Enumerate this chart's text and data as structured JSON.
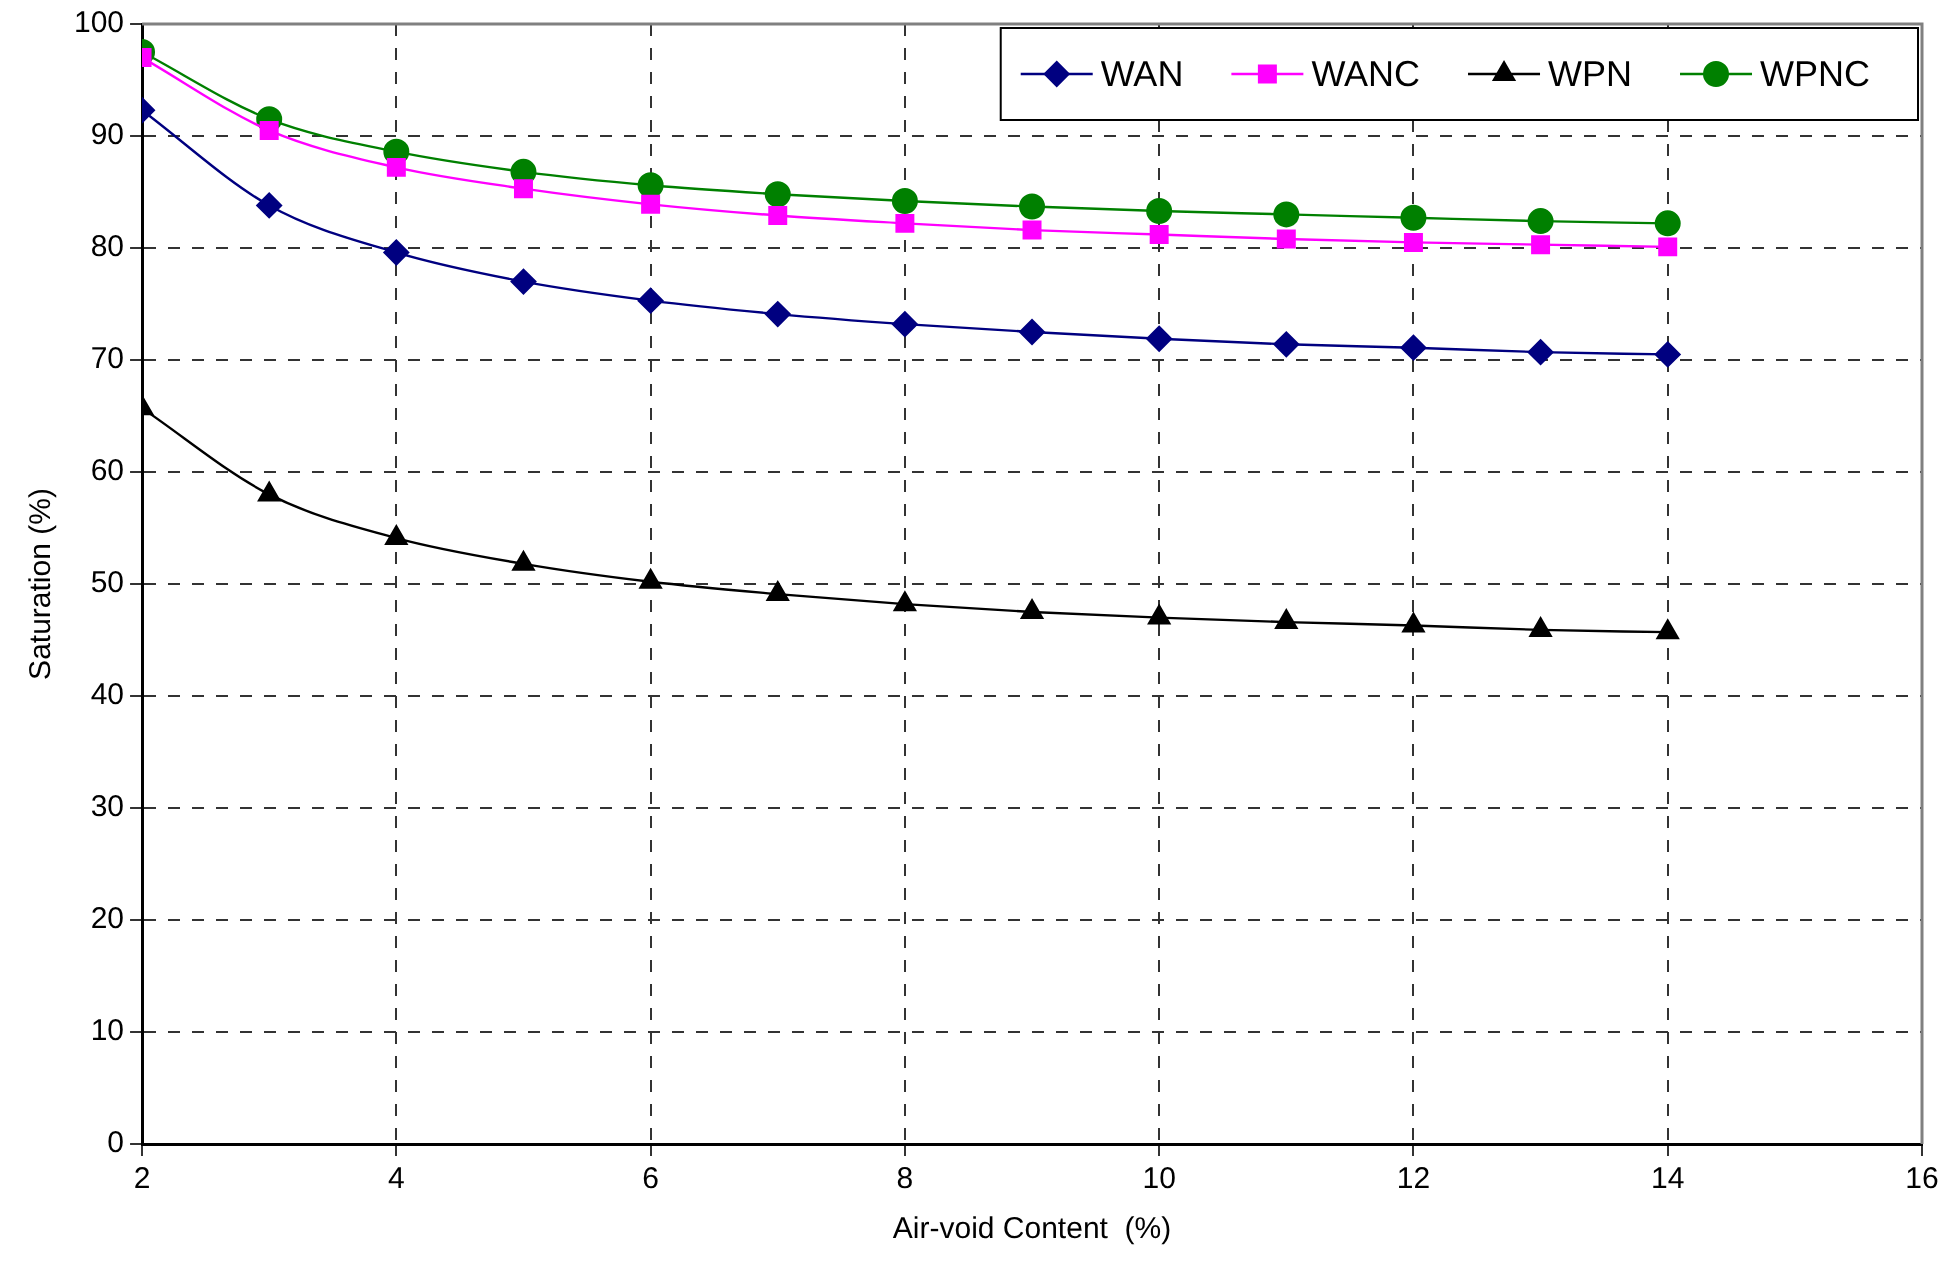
{
  "chart_data": {
    "type": "line",
    "xlabel": "Air-void Content  (%)",
    "ylabel": "Saturation (%)",
    "x": [
      2,
      3,
      4,
      5,
      6,
      7,
      8,
      9,
      10,
      11,
      12,
      13,
      14
    ],
    "series": [
      {
        "name": "WAN",
        "color": "#000080",
        "marker": "diamond",
        "values": [
          92.3,
          83.8,
          79.6,
          77.0,
          75.3,
          74.1,
          73.2,
          72.5,
          71.9,
          71.4,
          71.1,
          70.7,
          70.5
        ]
      },
      {
        "name": "WANC",
        "color": "#ff00ff",
        "marker": "square",
        "values": [
          97.0,
          90.5,
          87.2,
          85.3,
          83.9,
          82.9,
          82.2,
          81.6,
          81.2,
          80.8,
          80.5,
          80.3,
          80.1
        ]
      },
      {
        "name": "WPN",
        "color": "#000000",
        "marker": "triangle",
        "values": [
          65.7,
          58.0,
          54.1,
          51.8,
          50.2,
          49.1,
          48.2,
          47.5,
          47.0,
          46.6,
          46.3,
          45.9,
          45.7
        ]
      },
      {
        "name": "WPNC",
        "color": "#008000",
        "marker": "circle",
        "values": [
          97.5,
          91.5,
          88.6,
          86.8,
          85.6,
          84.8,
          84.2,
          83.7,
          83.3,
          83.0,
          82.7,
          82.4,
          82.2
        ]
      }
    ],
    "xlim": [
      2,
      16
    ],
    "xticks": [
      2,
      4,
      6,
      8,
      10,
      12,
      14,
      16
    ],
    "ylim": [
      0,
      100
    ],
    "yticks": [
      0,
      10,
      20,
      30,
      40,
      50,
      60,
      70,
      80,
      90,
      100
    ],
    "grid": true,
    "legend": "top right"
  }
}
